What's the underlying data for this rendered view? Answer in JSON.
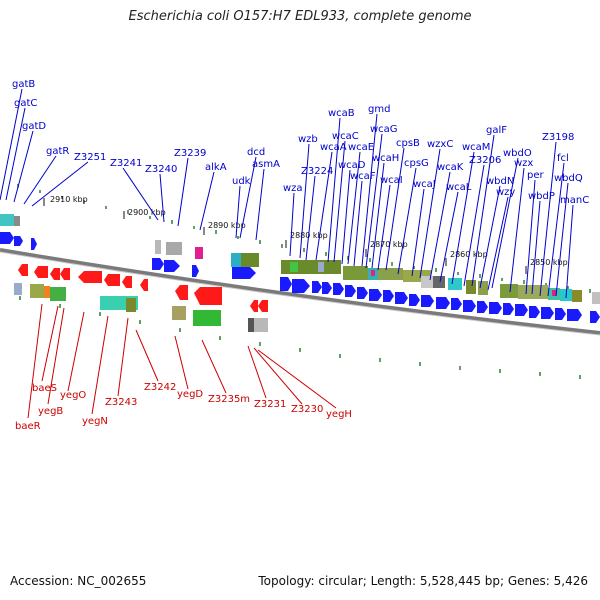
{
  "title": "Escherichia coli O157:H7 EDL933, complete genome",
  "footer": {
    "accession": "Accession: NC_002655",
    "summary": "Topology: circular; Length: 5,528,445 bp; Genes: 5,426"
  },
  "colors": {
    "forward_arrow": "#1a1aff",
    "reverse_arrow": "#ff1a1a",
    "forward_label": "#0000cc",
    "reverse_label": "#cc0000",
    "backbone": "#7a7a7a",
    "tick": "#2e7d32",
    "kbp_label": "#111111"
  },
  "kbp_ticks": [
    "2910 kbp",
    "2900 kbp",
    "2890 kbp",
    "2880 kbp",
    "2870 kbp",
    "2860 kbp",
    "2850 kbp"
  ],
  "forward_genes": [
    "gatB",
    "gatC",
    "gatD",
    "gatR",
    "Z3251",
    "Z3241",
    "Z3240",
    "Z3239",
    "alkA",
    "udk",
    "dcd",
    "asmA",
    "wza",
    "wzb",
    "Z3224",
    "wcaA",
    "wcaB",
    "wcaC",
    "wcaD",
    "wcaE",
    "wcaF",
    "gmd",
    "wcaG",
    "wcaH",
    "wcaI",
    "cpsB",
    "cpsG",
    "wcaJ",
    "wzxC",
    "wcaK",
    "wcaL",
    "wcaM",
    "Z3206",
    "galF",
    "wbdN",
    "wbdO",
    "wzy",
    "wzx",
    "per",
    "wbdP",
    "Z3198",
    "fcl",
    "wbdQ",
    "manC"
  ],
  "reverse_genes": [
    "baeS",
    "baeR",
    "yegB",
    "yegO",
    "yegN",
    "Z3243",
    "Z3242",
    "yegD",
    "Z3235m",
    "Z3231",
    "Z3230",
    "yegH"
  ]
}
